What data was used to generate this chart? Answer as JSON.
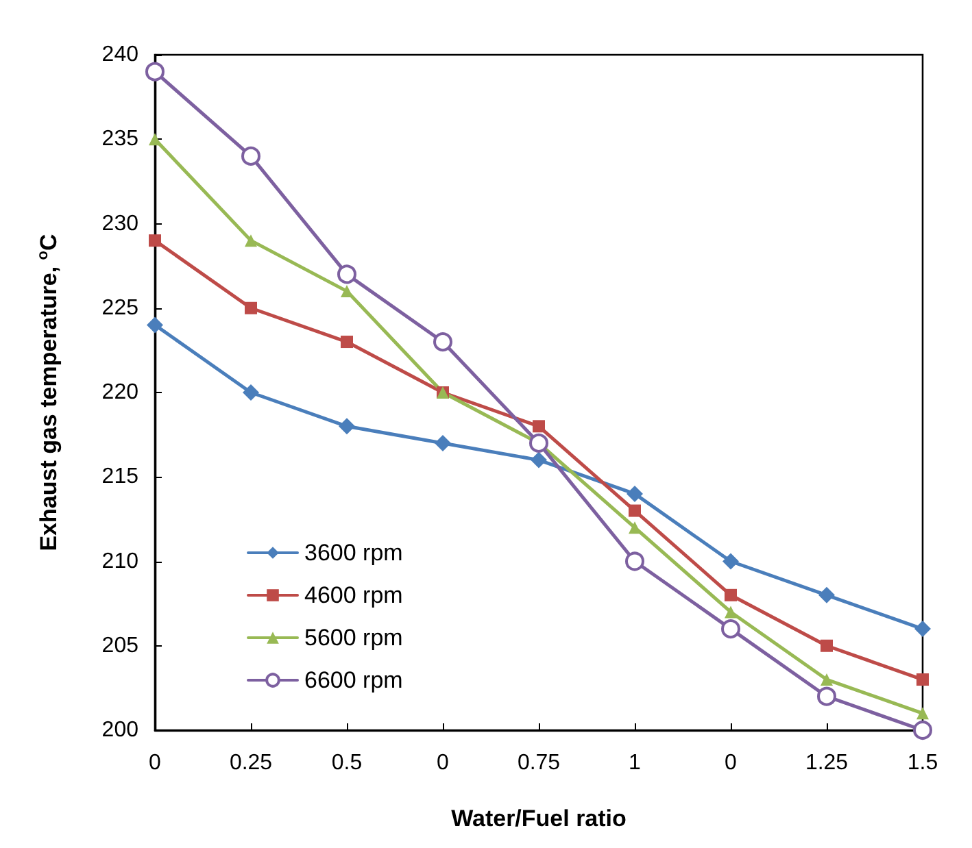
{
  "chart_data": {
    "type": "line",
    "xlabel": "Water/Fuel ratio",
    "ylabel": "Exhaust gas temperature, $^{o}$C",
    "categories": [
      "0",
      "0.25",
      "0.5",
      "0",
      "0.75",
      "1",
      "0",
      "1.25",
      "1.5"
    ],
    "series": [
      {
        "name": "3600 rpm",
        "color": "#4a7ebb",
        "marker": "diamond",
        "values": [
          224,
          220,
          218,
          217,
          216,
          214,
          210,
          208,
          206
        ]
      },
      {
        "name": "4600 rpm",
        "color": "#be4b48",
        "marker": "square",
        "values": [
          229,
          225,
          223,
          220,
          218,
          213,
          208,
          205,
          203
        ]
      },
      {
        "name": "5600 rpm",
        "color": "#98b954",
        "marker": "triangle",
        "values": [
          235,
          229,
          226,
          220,
          217,
          212,
          207,
          203,
          201
        ]
      },
      {
        "name": "6600 rpm",
        "color": "#7d60a0",
        "marker": "circle",
        "values": [
          239,
          234,
          227,
          223,
          217,
          210,
          206,
          202,
          200
        ]
      }
    ],
    "ylim": [
      200,
      240
    ],
    "yticks": [
      200,
      205,
      210,
      215,
      220,
      225,
      230,
      235,
      240
    ],
    "grid": false,
    "legend": "left",
    "line_style": "solid"
  }
}
